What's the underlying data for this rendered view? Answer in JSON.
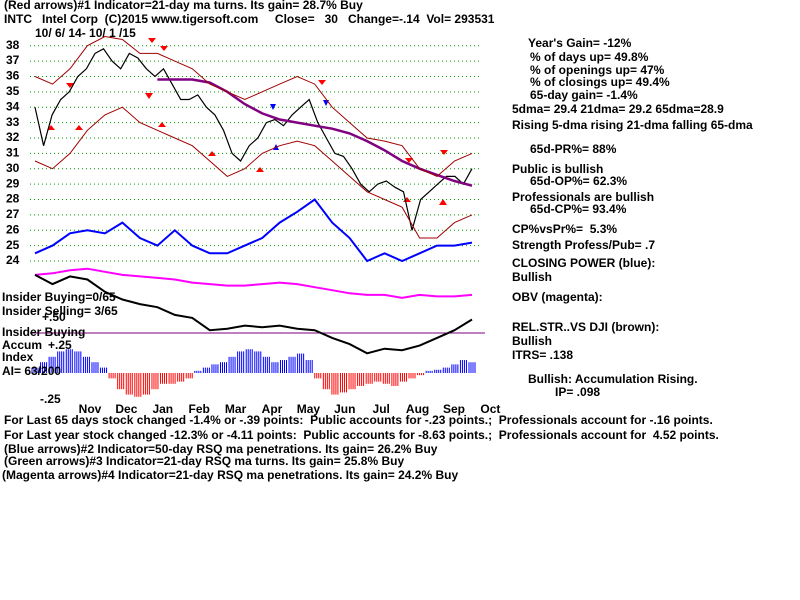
{
  "chart_data": {
    "type": "line",
    "header_lines": [
      "(Red arrows)#1 Indicator=21-day ma turns. Its gain= 28.7% Buy",
      "INTC   Intel Corp  (C)2015 www.tigersoft.com     Close=   30   Change=-.14  Vol= 293531",
      "10/ 6/ 14- 10/ 1 /15"
    ],
    "x_labels": [
      "Nov",
      "Dec",
      "Jan",
      "Feb",
      "Mar",
      "Apr",
      "May",
      "Jun",
      "Jul",
      "Aug",
      "Sep",
      "Oct"
    ],
    "ylim": [
      17.5,
      38.5
    ],
    "yticks": [
      24,
      25,
      26,
      27,
      28,
      29,
      30,
      31,
      32,
      33,
      34,
      35,
      36,
      37,
      38
    ],
    "grid": true,
    "grid_color": "#00a000",
    "series": [
      {
        "name": "Price",
        "color": "#000000",
        "width": 1.2,
        "values": [
          34,
          31.5,
          33.5,
          34.5,
          35,
          36,
          36.5,
          37.5,
          37.8,
          37,
          36.5,
          37.5,
          37.2,
          36.5,
          36,
          36.5,
          35.5,
          34.5,
          34.5,
          34.8,
          34,
          33.5,
          32.5,
          31,
          30.5,
          31.5,
          32,
          33,
          33.2,
          32.8,
          33.5,
          34,
          34.5,
          33,
          32,
          31,
          30.8,
          30,
          29,
          28.5,
          29,
          29.2,
          28.8,
          28.5,
          26,
          28,
          28.5,
          29,
          29.5,
          29.5,
          29,
          30
        ]
      },
      {
        "name": "65-dma",
        "color": "#800080",
        "width": 2.5,
        "values": [
          null,
          null,
          null,
          null,
          null,
          null,
          null,
          35.8,
          35.8,
          35.8,
          35.6,
          35,
          34.2,
          33.6,
          33.2,
          33,
          32.8,
          32.6,
          32.3,
          31.8,
          31.2,
          30.5,
          30,
          29.6,
          29.2,
          28.9
        ]
      },
      {
        "name": "Upper band",
        "color": "#a00000",
        "width": 1,
        "values": [
          36,
          35.5,
          36.5,
          38,
          38.6,
          38.4,
          37.5,
          37.5,
          37,
          36.5,
          35.5,
          35,
          34.5,
          35,
          35.5,
          36,
          35.5,
          34,
          33,
          32,
          31.8,
          31.5,
          30,
          29.5,
          30.5,
          31
        ]
      },
      {
        "name": "Lower band",
        "color": "#a00000",
        "width": 1,
        "values": [
          30.5,
          30,
          31,
          32.5,
          33.5,
          34,
          33,
          32.5,
          32,
          31.5,
          30.5,
          29.5,
          30,
          31,
          31.5,
          31.8,
          31.5,
          30.5,
          29.5,
          28.5,
          28,
          27.5,
          25.5,
          25.5,
          26.5,
          27
        ]
      },
      {
        "name": "Closing Power",
        "color": "#0000ff",
        "width": 2,
        "values": [
          24.5,
          25,
          25.8,
          26,
          25.8,
          26.5,
          25.5,
          25,
          26,
          25,
          24.5,
          24.5,
          25,
          25.5,
          26.5,
          27.2,
          28,
          26.5,
          25.5,
          24,
          24.5,
          24,
          24.5,
          25,
          25,
          25.2
        ]
      },
      {
        "name": "OBV",
        "color": "#ff00ff",
        "width": 2,
        "values": [
          23.1,
          23.2,
          23.4,
          23.5,
          23.3,
          23.1,
          23,
          22.9,
          22.8,
          22.6,
          22.5,
          22.4,
          22.4,
          22.5,
          22.6,
          22.5,
          22.3,
          22.1,
          21.9,
          21.8,
          21.8,
          21.6,
          21.8,
          21.7,
          21.7,
          21.8
        ]
      },
      {
        "name": "Rel.Str",
        "color": "#000000",
        "width": 2,
        "values": [
          23.1,
          22.5,
          23,
          22.8,
          22,
          21.5,
          21.2,
          21,
          20.5,
          20.3,
          19.5,
          19.6,
          19.8,
          19.7,
          19.8,
          19.6,
          19.5,
          19,
          18.6,
          18,
          18.3,
          18.2,
          18.5,
          19,
          19.5,
          20.2
        ]
      }
    ],
    "accum": {
      "type": "bar",
      "label": "Accum",
      "label2": "Index",
      "pos_color": "#0000ff",
      "neg_color": "#ff0000",
      "ylim": [
        -0.25,
        0.25
      ],
      "yticks": [
        {
          "value": 0.25,
          "label": "+.25"
        },
        {
          "value": -0.25,
          "label": "-.25"
        }
      ],
      "values": [
        0.05,
        0.1,
        0.15,
        0.2,
        0.22,
        0.2,
        0.15,
        0.1,
        0.05,
        -0.05,
        -0.15,
        -0.2,
        -0.22,
        -0.2,
        -0.15,
        -0.1,
        -0.1,
        -0.08,
        -0.05,
        0.02,
        0.05,
        0.08,
        0.1,
        0.15,
        0.2,
        0.22,
        0.2,
        0.15,
        0.1,
        0.12,
        0.15,
        0.18,
        0.12,
        -0.05,
        -0.15,
        -0.2,
        -0.18,
        -0.15,
        -0.12,
        -0.1,
        -0.08,
        -0.1,
        -0.12,
        -0.08,
        -0.05,
        -0.02,
        0.02,
        0.03,
        0.05,
        0.08,
        0.12,
        0.1
      ]
    },
    "left_labels": [
      "Insider Buying=0/65",
      "Insider Selling= 3/65",
      "+.50",
      "Insider Buying",
      "AI= 63/200"
    ],
    "stats": [
      "Year's Gain= -12%",
      "% of days up= 49.8%",
      "% of openings up= 47%",
      "% of closings up= 49.4%",
      "65-day gain= -1.4%",
      "5dma= 29.4 21dma= 29.2 65dma=28.9",
      "Rising 5-dma rising 21-dma falling 65-dma",
      "65d-PR%= 88%",
      "Public is bullish",
      "65d-OP%= 62.3%",
      "Professionals are bullish",
      "65d-CP%= 93.4%",
      "CP%vsPr%=  5.3%",
      "Strength Profess/Pub= .7",
      "CLOSING POWER (blue):",
      "Bullish",
      "OBV (magenta):",
      "REL.STR..VS DJI (brown):",
      "Bullish",
      "ITRS= .138",
      "Bullish: Accumulation Rising.",
      "IP= .098"
    ],
    "footer_lines": [
      "For Last 65 days stock changed -1.4% or -.39 points:  Public accounts for -.23 points.;  Professionals account for -.16 points.",
      "For Last year stock changed -12.3% or -4.11 points:  Public accounts for -8.63 points.;  Professionals account for  4.52 points.",
      "(Blue arrows)#2 Indicator=50-day RSQ ma penetrations. Its gain= 26.2% Buy",
      "(Green arrows)#3 Indicator=21-day RSQ ma turns. Its gain= 25.8% Buy",
      "(Magenta arrows)#4 Indicator=21-day RSQ ma penetrations. Its gain= 24.2% Buy"
    ]
  }
}
